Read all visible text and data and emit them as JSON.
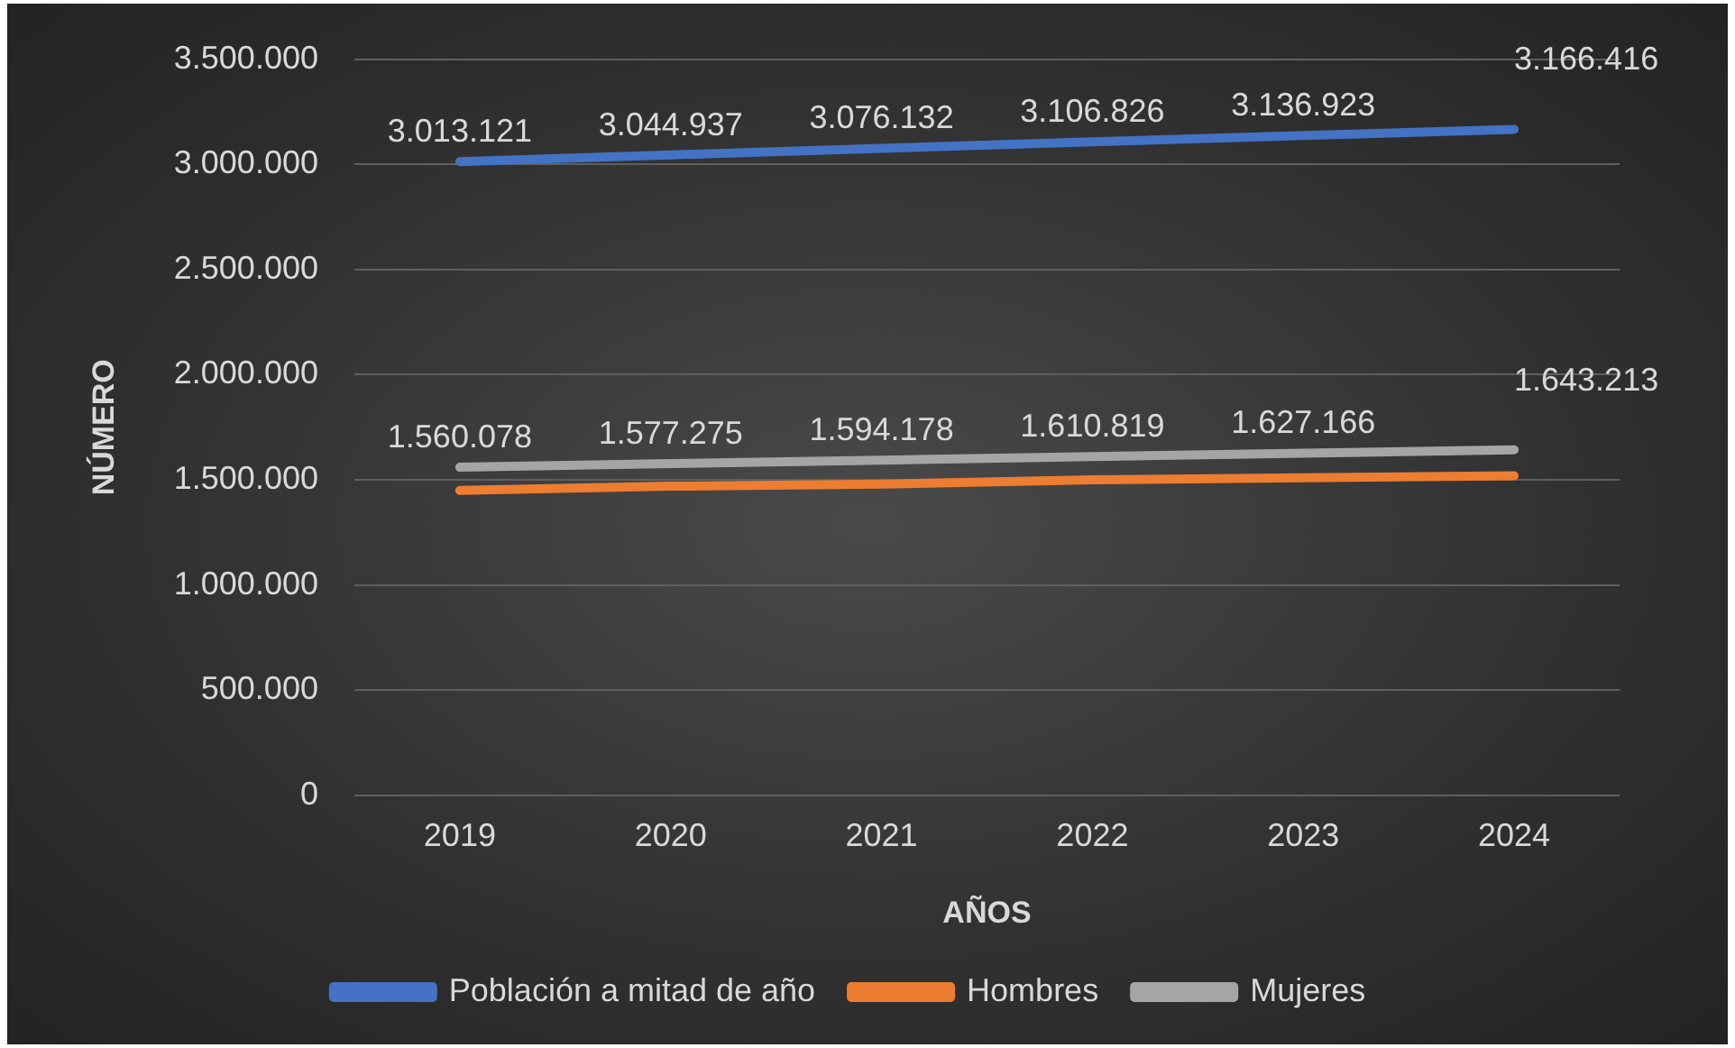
{
  "chart_data": {
    "type": "line",
    "xlabel": "AÑOS",
    "ylabel": "NÚMERO",
    "categories": [
      "2019",
      "2020",
      "2021",
      "2022",
      "2023",
      "2024"
    ],
    "series": [
      {
        "name": "Población a mitad de año",
        "color": "#4472c4",
        "values": [
          3013121,
          3044937,
          3076132,
          3106826,
          3136923,
          3166416
        ],
        "value_labels": [
          "3.013.121",
          "3.044.937",
          "3.076.132",
          "3.106.826",
          "3.136.923",
          "3.166.416"
        ]
      },
      {
        "name": "Hombres",
        "color": "#ed7d31",
        "values": [
          1450000,
          1470000,
          1480000,
          1500000,
          1510000,
          1520000
        ]
      },
      {
        "name": "Mujeres",
        "color": "#a5a5a5",
        "values": [
          1560078,
          1577275,
          1594178,
          1610819,
          1627166,
          1643213
        ],
        "value_labels": [
          "1.560.078",
          "1.577.275",
          "1.594.178",
          "1.610.819",
          "1.627.166",
          "1.643.213"
        ]
      }
    ],
    "ylim": [
      0,
      3500000
    ],
    "yticks": [
      {
        "value": 0,
        "label": "0"
      },
      {
        "value": 500000,
        "label": "500.000"
      },
      {
        "value": 1000000,
        "label": "1.000.000"
      },
      {
        "value": 1500000,
        "label": "1.500.000"
      },
      {
        "value": 2000000,
        "label": "2.000.000"
      },
      {
        "value": 2500000,
        "label": "2.500.000"
      },
      {
        "value": 3000000,
        "label": "3.000.000"
      },
      {
        "value": 3500000,
        "label": "3.500.000"
      }
    ],
    "grid": "y",
    "legend": "bottom",
    "marker": "none",
    "line_style": "solid"
  }
}
